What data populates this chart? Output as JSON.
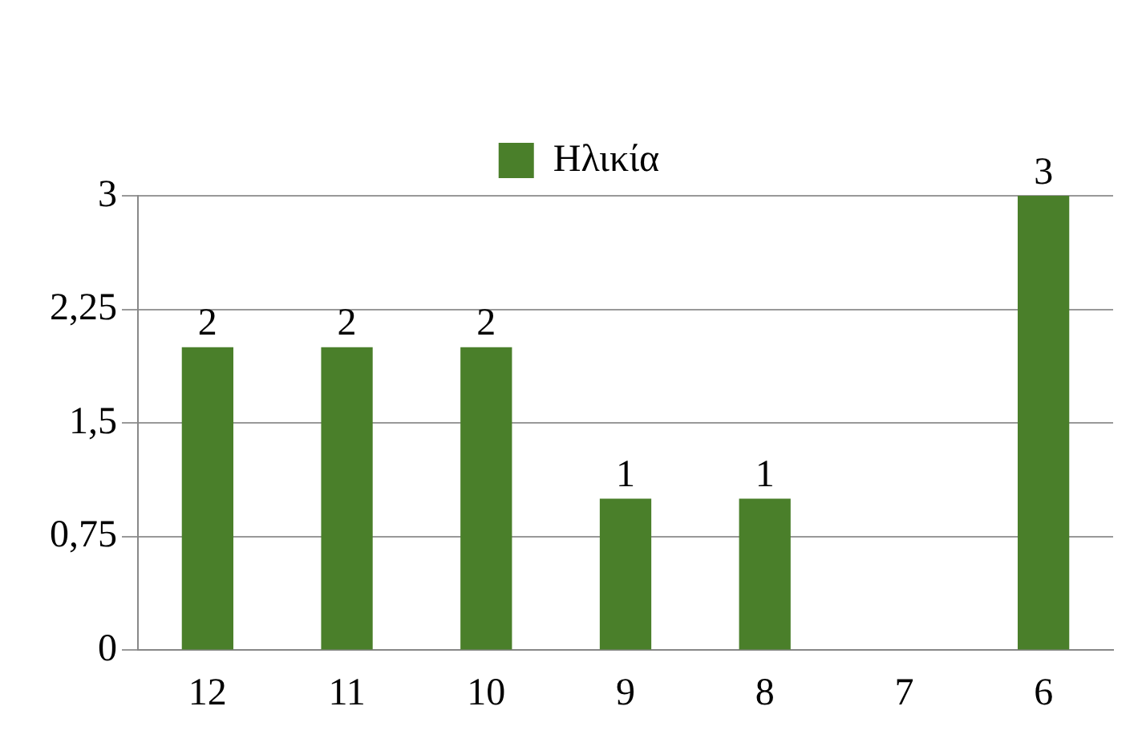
{
  "chart_data": {
    "type": "bar",
    "categories": [
      "12",
      "11",
      "10",
      "9",
      "8",
      "7",
      "6"
    ],
    "series": [
      {
        "name": "Ηλικία",
        "color": "#4a7f2a",
        "values": [
          2,
          2,
          2,
          1,
          1,
          0,
          3
        ],
        "value_labels": [
          "2",
          "2",
          "2",
          "1",
          "1",
          null,
          "3"
        ]
      }
    ],
    "ylim": [
      0,
      3
    ],
    "yticks": [
      0,
      {
        "value": 0.75,
        "label": "0,75"
      },
      {
        "value": 1.5,
        "label": "1,5"
      },
      {
        "value": 2.25,
        "label": "2,25"
      },
      3
    ],
    "grid": "y",
    "legend": "top"
  }
}
